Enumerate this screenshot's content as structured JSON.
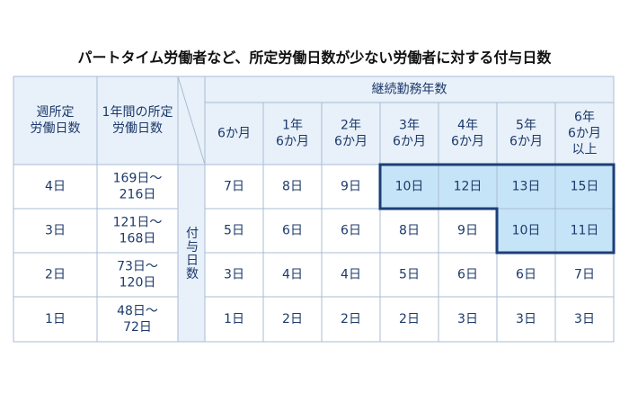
{
  "title": "パートタイム労働者など、所定労働日数が少ない労働者に対する付与日数",
  "header": {
    "week_days": [
      "週所定",
      "労働日数"
    ],
    "year_days": [
      "1年間の所定",
      "労働日数"
    ],
    "grant_label": "付与日数",
    "tenure_label": "継続勤務年数",
    "tenures": [
      [
        "6か月"
      ],
      [
        "1年",
        "6か月"
      ],
      [
        "2年",
        "6か月"
      ],
      [
        "3年",
        "6か月"
      ],
      [
        "4年",
        "6か月"
      ],
      [
        "5年",
        "6か月"
      ],
      [
        "6年",
        "6か月",
        "以上"
      ]
    ]
  },
  "rows": [
    {
      "days": "4日",
      "range": [
        "169日〜",
        "216日"
      ],
      "grants": [
        "7日",
        "8日",
        "9日",
        "10日",
        "12日",
        "13日",
        "15日"
      ]
    },
    {
      "days": "3日",
      "range": [
        "121日〜",
        "168日"
      ],
      "grants": [
        "5日",
        "6日",
        "6日",
        "8日",
        "9日",
        "10日",
        "11日"
      ]
    },
    {
      "days": "2日",
      "range": [
        "73日〜",
        "120日"
      ],
      "grants": [
        "3日",
        "4日",
        "4日",
        "5日",
        "6日",
        "6日",
        "7日"
      ]
    },
    {
      "days": "1日",
      "range": [
        "48日〜",
        "72日"
      ],
      "grants": [
        "1日",
        "2日",
        "2日",
        "2日",
        "3日",
        "3日",
        "3日"
      ]
    }
  ]
}
